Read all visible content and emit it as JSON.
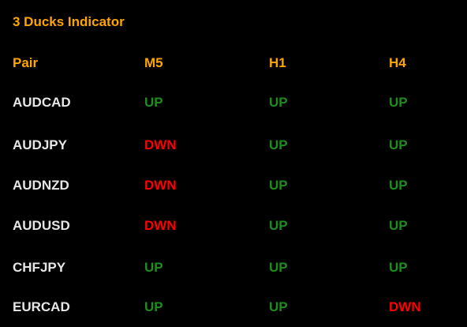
{
  "title": "3 Ducks Indicator",
  "colors": {
    "background": "#000000",
    "header": "#FFA500",
    "pair": "#E6E6E6",
    "up": "#1E8C1E",
    "dwn": "#FF0000"
  },
  "columns": [
    "Pair",
    "M5",
    "H1",
    "H4"
  ],
  "rows": [
    {
      "pair": "AUDCAD",
      "m5": "UP",
      "h1": "UP",
      "h4": "UP"
    },
    {
      "pair": "AUDJPY",
      "m5": "DWN",
      "h1": "UP",
      "h4": "UP"
    },
    {
      "pair": "AUDNZD",
      "m5": "DWN",
      "h1": "UP",
      "h4": "UP"
    },
    {
      "pair": "AUDUSD",
      "m5": "DWN",
      "h1": "UP",
      "h4": "UP"
    },
    {
      "pair": "CHFJPY",
      "m5": "UP",
      "h1": "UP",
      "h4": "UP"
    },
    {
      "pair": "EURCAD",
      "m5": "UP",
      "h1": "UP",
      "h4": "DWN"
    }
  ]
}
